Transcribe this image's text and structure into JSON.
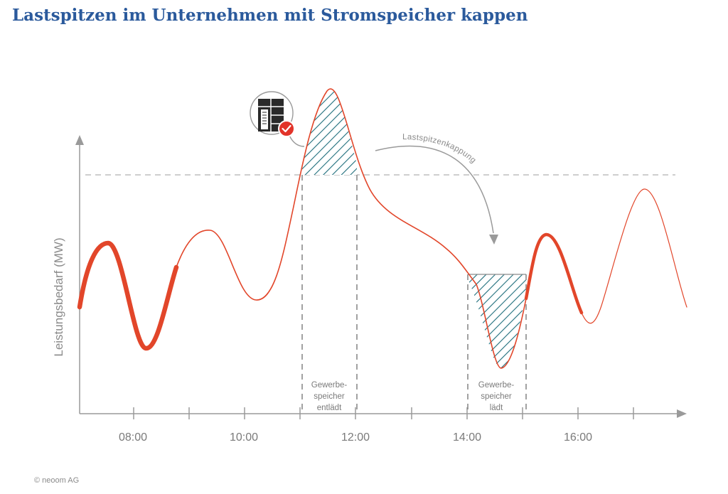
{
  "title": "Lastspitzen im Unternehmen mit Stromspeicher kappen",
  "copyright": "© neoom AG",
  "y_axis_label": "Leistungsbedarf (MW)",
  "x_ticks": [
    "08:00",
    "10:00",
    "12:00",
    "14:00",
    "16:00"
  ],
  "zone_discharge": [
    "Gewerbe-",
    "speicher",
    "entlädt"
  ],
  "zone_charge": [
    "Gewerbe-",
    "speicher",
    "lädt"
  ],
  "curve_label": "Lastspitzenkappung",
  "colors": {
    "title": "#2b5a9c",
    "curve": "#e2462a",
    "hatch": "#1f6e7c",
    "axis": "#8a8a8a",
    "threshold": "#bdbdbd"
  },
  "icons": [
    "battery-storage-icon",
    "checkmark-icon"
  ]
}
